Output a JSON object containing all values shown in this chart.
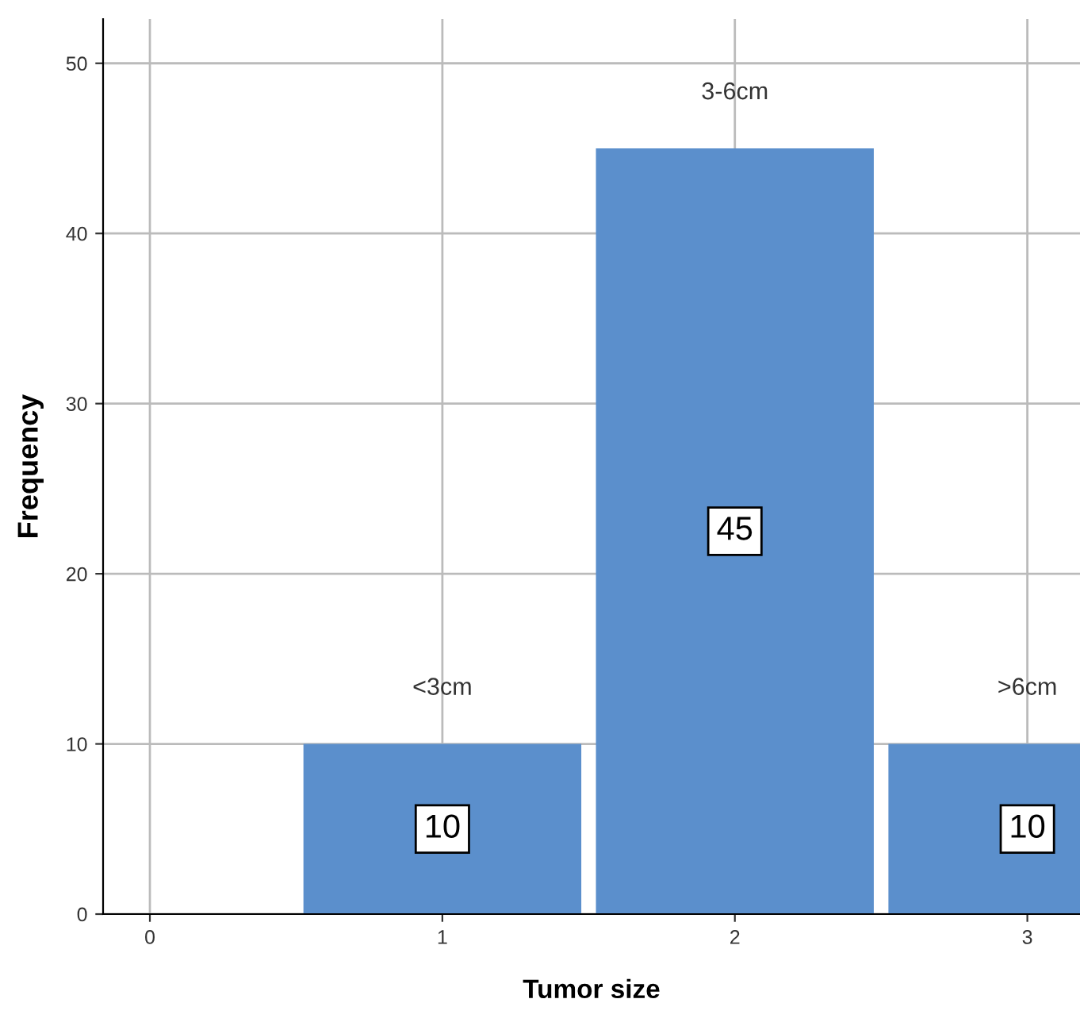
{
  "chart_data": {
    "type": "bar",
    "xlabel": "Tumor size",
    "ylabel": "Frequency",
    "x": [
      1,
      2,
      3
    ],
    "values": [
      10,
      45,
      10
    ],
    "color": "#5b8fcc",
    "xlim": [
      -0.16,
      3.18
    ],
    "xticks": [
      0,
      1,
      2,
      3
    ],
    "ylim": [
      0,
      52.6
    ],
    "yticks": [
      0,
      10,
      20,
      30,
      40,
      50
    ],
    "grid": true,
    "data_labels": true,
    "annotations": [
      "<3cm",
      "3-6cm",
      ">6cm"
    ]
  }
}
